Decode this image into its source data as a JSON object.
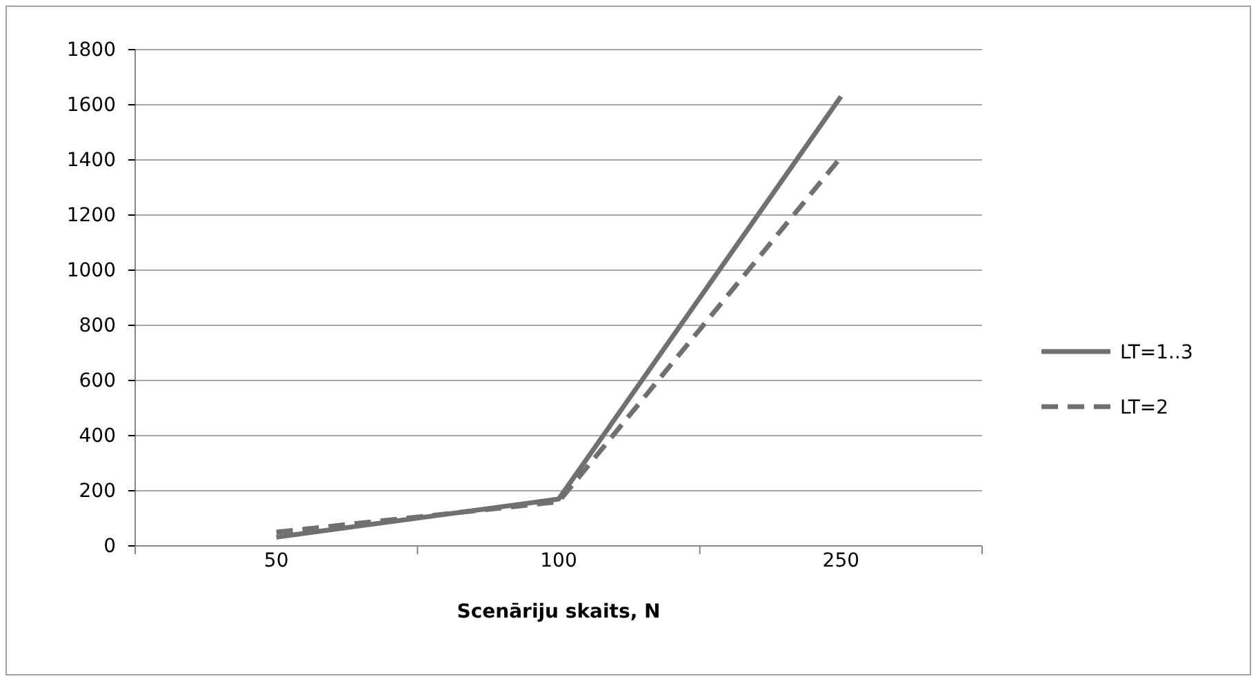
{
  "chart_data": {
    "type": "line",
    "xlabel": "Scenāriju skaits, N",
    "categories": [
      "50",
      "100",
      "250"
    ],
    "series": [
      {
        "name": "LT=1..3",
        "color": "#707070",
        "values": [
          32,
          170,
          1630
        ],
        "line_style": "solid"
      },
      {
        "name": "LT=2",
        "color": "#707070",
        "values": [
          50,
          160,
          1410
        ],
        "line_style": "dashed"
      }
    ],
    "ylim": [
      0,
      1800
    ],
    "yticks": [
      0,
      200,
      400,
      600,
      800,
      1000,
      1200,
      1400,
      1600,
      1800
    ],
    "grid": "y",
    "legend": "right",
    "marker": "none"
  }
}
